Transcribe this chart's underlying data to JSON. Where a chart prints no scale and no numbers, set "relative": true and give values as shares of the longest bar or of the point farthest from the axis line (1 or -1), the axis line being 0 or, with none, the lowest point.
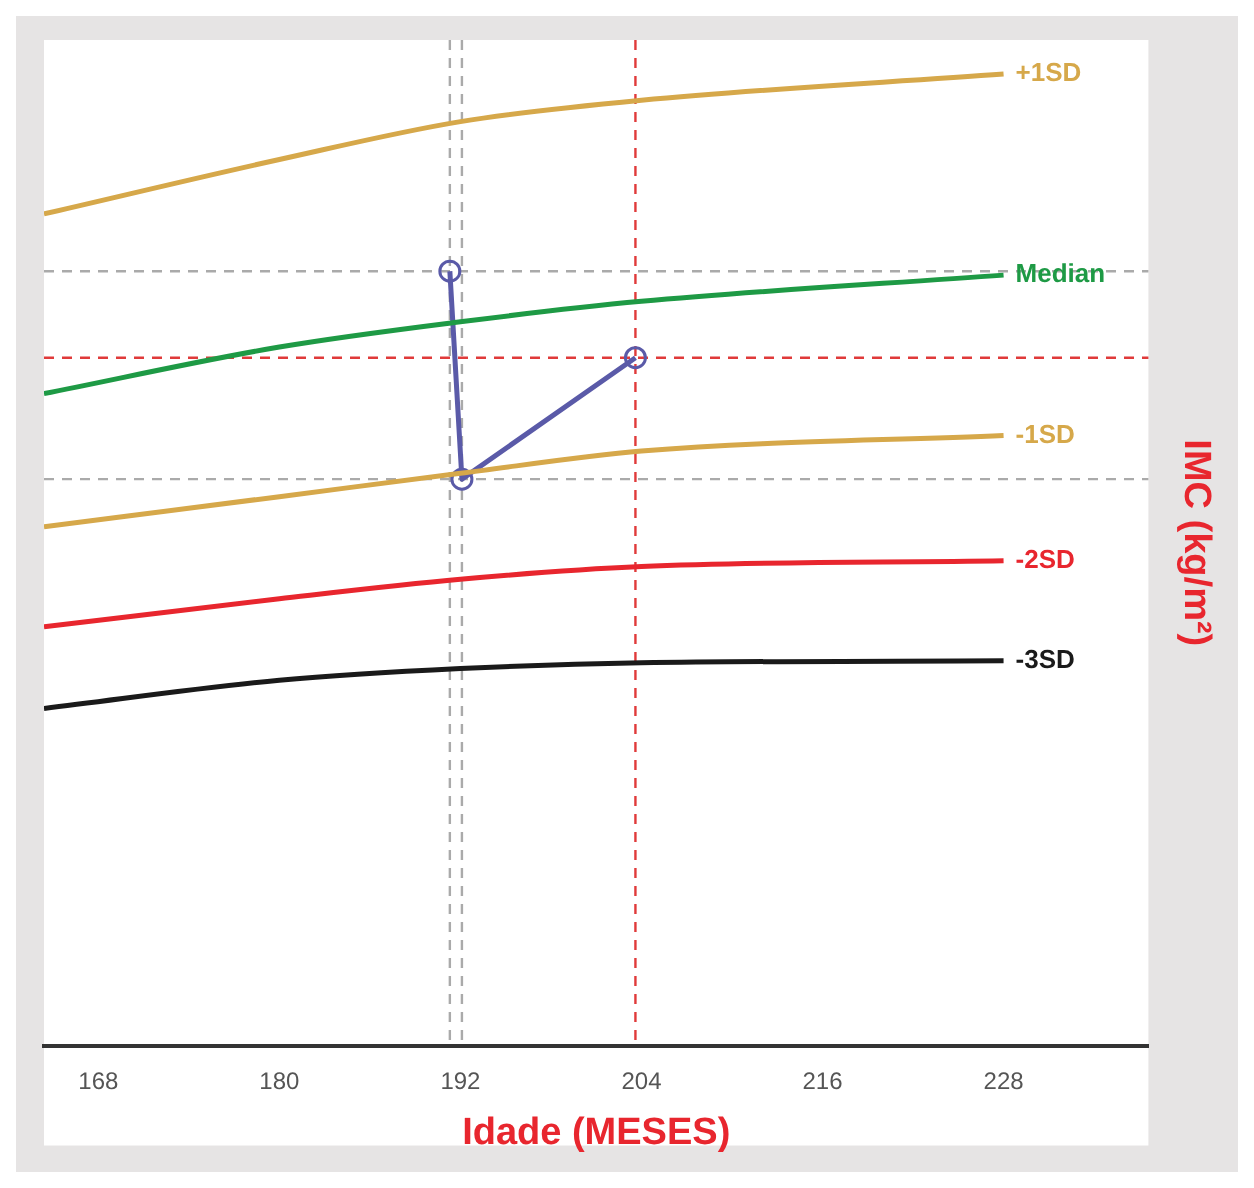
{
  "chart_data": {
    "type": "line",
    "xlabel": "Idade (MESES)",
    "ylabel": "IMC (kg/m²)",
    "relative": true,
    "xlim": [
      164.4,
      237.6
    ],
    "xticks": [
      168,
      180,
      192,
      204,
      216,
      228
    ],
    "grid": false,
    "legend": false,
    "marker": "none",
    "line_style": "solid",
    "series": [
      {
        "name": "+1SD",
        "color": "#d6a84a",
        "x": [
          164.4,
          180,
          192,
          204,
          228
        ],
        "values": [
          0.856,
          0.912,
          0.951,
          0.973,
          1
        ]
      },
      {
        "name": "Median",
        "color": "#1e9a45",
        "x": [
          164.4,
          180,
          192,
          204,
          228
        ],
        "values": [
          0.671,
          0.719,
          0.745,
          0.766,
          0.793
        ]
      },
      {
        "name": "-1SD",
        "color": "#d6a84a",
        "x": [
          164.4,
          180,
          192,
          204,
          228
        ],
        "values": [
          0.534,
          0.565,
          0.589,
          0.612,
          0.628
        ]
      },
      {
        "name": "-2SD",
        "color": "#e8262e",
        "x": [
          164.4,
          180,
          192,
          204,
          228
        ],
        "values": [
          0.431,
          0.46,
          0.48,
          0.493,
          0.499
        ]
      },
      {
        "name": "-3SD",
        "color": "#1a1a1a",
        "x": [
          164.4,
          180,
          192,
          204,
          228
        ],
        "values": [
          0.347,
          0.376,
          0.388,
          0.394,
          0.396
        ]
      },
      {
        "color": "#5a5aa8",
        "marker": "circle",
        "x": [
          191.3,
          192.1,
          203.6
        ],
        "values": [
          0.797,
          0.583,
          0.708
        ]
      }
    ],
    "ref_lines": [
      {
        "axis": "x",
        "value": 191.3,
        "color": "#aaaaaa",
        "line_style": "dashed"
      },
      {
        "axis": "x",
        "value": 192.1,
        "color": "#aaaaaa",
        "line_style": "dashed"
      },
      {
        "axis": "x",
        "value": 203.6,
        "color": "#e03a3a",
        "line_style": "dashed"
      },
      {
        "axis": "y",
        "value": 0.797,
        "color": "#aaaaaa",
        "line_style": "dashed"
      },
      {
        "axis": "y",
        "value": 0.583,
        "color": "#aaaaaa",
        "line_style": "dashed"
      },
      {
        "axis": "y",
        "value": 0.708,
        "color": "#e03a3a",
        "line_style": "dashed"
      }
    ]
  }
}
